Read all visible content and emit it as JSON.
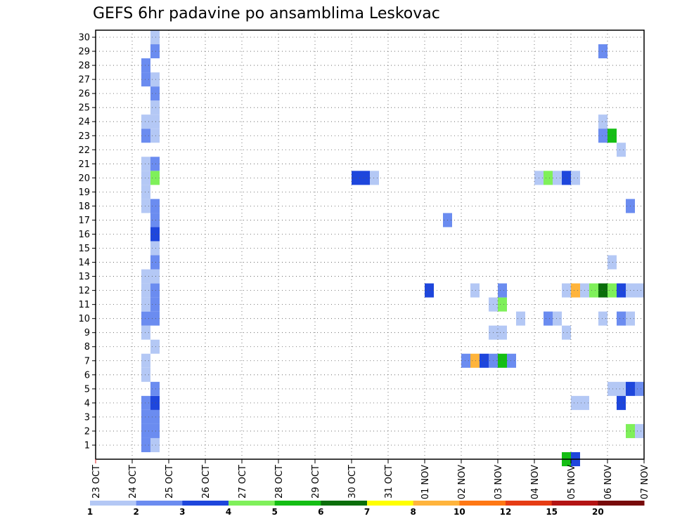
{
  "chart_data": {
    "type": "heatmap",
    "title": "GEFS 6hr padavine po ansamblima Leskovac",
    "xlabel": "",
    "ylabel": "",
    "x_tick_labels": [
      "23 OCT",
      "24 OCT",
      "25 OCT",
      "26 OCT",
      "27 OCT",
      "28 OCT",
      "29 OCT",
      "30 OCT",
      "31 OCT",
      "01 NOV",
      "02 NOV",
      "03 NOV",
      "04 NOV",
      "05 NOV",
      "06 NOV",
      "07 NOV"
    ],
    "y_tick_labels": [
      "1",
      "2",
      "3",
      "4",
      "5",
      "6",
      "7",
      "8",
      "9",
      "10",
      "11",
      "12",
      "13",
      "14",
      "15",
      "16",
      "17",
      "18",
      "19",
      "20",
      "21",
      "22",
      "23",
      "24",
      "25",
      "26",
      "27",
      "28",
      "29",
      "30"
    ],
    "xlim_days": [
      0,
      15
    ],
    "ylim": [
      0,
      30
    ],
    "step_hours": 6,
    "grid": true,
    "colorbar": {
      "labels": [
        "1",
        "2",
        "3",
        "4",
        "5",
        "6",
        "7",
        "8",
        "10",
        "12",
        "15",
        "20"
      ],
      "colors": [
        "#b4c8f5",
        "#6b8cf0",
        "#1e46dc",
        "#7ff05a",
        "#14be14",
        "#0a6e0a",
        "#ffff00",
        "#ffb43c",
        "#ff7814",
        "#e63c14",
        "#b41414",
        "#780a0a"
      ]
    },
    "cells": [
      {
        "t": 1.25,
        "m": 1,
        "v": 2.5
      },
      {
        "t": 1.25,
        "m": 2,
        "v": 2.5
      },
      {
        "t": 1.25,
        "m": 3,
        "v": 2.5
      },
      {
        "t": 1.25,
        "m": 4,
        "v": 2.5
      },
      {
        "t": 1.25,
        "m": 6,
        "v": 1.5
      },
      {
        "t": 1.25,
        "m": 7,
        "v": 1.5
      },
      {
        "t": 1.25,
        "m": 9,
        "v": 1.5
      },
      {
        "t": 1.25,
        "m": 10,
        "v": 2.5
      },
      {
        "t": 1.25,
        "m": 11,
        "v": 1.5
      },
      {
        "t": 1.25,
        "m": 12,
        "v": 1.5
      },
      {
        "t": 1.25,
        "m": 13,
        "v": 1.5
      },
      {
        "t": 1.25,
        "m": 18,
        "v": 1.5
      },
      {
        "t": 1.25,
        "m": 19,
        "v": 1.5
      },
      {
        "t": 1.25,
        "m": 20,
        "v": 1.5
      },
      {
        "t": 1.25,
        "m": 21,
        "v": 1.5
      },
      {
        "t": 1.25,
        "m": 23,
        "v": 2.5
      },
      {
        "t": 1.25,
        "m": 24,
        "v": 1.5
      },
      {
        "t": 1.25,
        "m": 27,
        "v": 2.5
      },
      {
        "t": 1.25,
        "m": 28,
        "v": 2.5
      },
      {
        "t": 1.5,
        "m": 1,
        "v": 1.5
      },
      {
        "t": 1.5,
        "m": 2,
        "v": 2.5
      },
      {
        "t": 1.5,
        "m": 3,
        "v": 2.5
      },
      {
        "t": 1.5,
        "m": 4,
        "v": 3.5
      },
      {
        "t": 1.5,
        "m": 5,
        "v": 2.5
      },
      {
        "t": 1.5,
        "m": 8,
        "v": 1.5
      },
      {
        "t": 1.5,
        "m": 10,
        "v": 2.5
      },
      {
        "t": 1.5,
        "m": 11,
        "v": 2.5
      },
      {
        "t": 1.5,
        "m": 12,
        "v": 2.5
      },
      {
        "t": 1.5,
        "m": 13,
        "v": 1.5
      },
      {
        "t": 1.5,
        "m": 14,
        "v": 2.5
      },
      {
        "t": 1.5,
        "m": 15,
        "v": 1.5
      },
      {
        "t": 1.5,
        "m": 16,
        "v": 3.5
      },
      {
        "t": 1.5,
        "m": 17,
        "v": 2.5
      },
      {
        "t": 1.5,
        "m": 18,
        "v": 2.5
      },
      {
        "t": 1.5,
        "m": 20,
        "v": 4.5
      },
      {
        "t": 1.5,
        "m": 21,
        "v": 2.5
      },
      {
        "t": 1.5,
        "m": 23,
        "v": 1.5
      },
      {
        "t": 1.5,
        "m": 24,
        "v": 1.5
      },
      {
        "t": 1.5,
        "m": 25,
        "v": 1.5
      },
      {
        "t": 1.5,
        "m": 26,
        "v": 2.5
      },
      {
        "t": 1.5,
        "m": 27,
        "v": 1.5
      },
      {
        "t": 1.5,
        "m": 29,
        "v": 2.5
      },
      {
        "t": 1.5,
        "m": 30,
        "v": 1.5
      },
      {
        "t": 7.0,
        "m": 20,
        "v": 3.5
      },
      {
        "t": 7.25,
        "m": 20,
        "v": 3.5
      },
      {
        "t": 7.5,
        "m": 20,
        "v": 1.5
      },
      {
        "t": 9.0,
        "m": 12,
        "v": 3.5
      },
      {
        "t": 9.5,
        "m": 17,
        "v": 2.5
      },
      {
        "t": 10.0,
        "m": 7,
        "v": 2.5
      },
      {
        "t": 10.25,
        "m": 7,
        "v": 9.0
      },
      {
        "t": 10.5,
        "m": 7,
        "v": 3.5
      },
      {
        "t": 10.75,
        "m": 7,
        "v": 2.5
      },
      {
        "t": 11.0,
        "m": 7,
        "v": 5.5
      },
      {
        "t": 11.25,
        "m": 7,
        "v": 2.5
      },
      {
        "t": 10.25,
        "m": 12,
        "v": 1.5
      },
      {
        "t": 10.75,
        "m": 9,
        "v": 1.5
      },
      {
        "t": 11.0,
        "m": 9,
        "v": 1.5
      },
      {
        "t": 10.75,
        "m": 11,
        "v": 1.5
      },
      {
        "t": 11.0,
        "m": 11,
        "v": 4.5
      },
      {
        "t": 11.0,
        "m": 12,
        "v": 2.5
      },
      {
        "t": 11.5,
        "m": 10,
        "v": 1.5
      },
      {
        "t": 12.0,
        "m": 20,
        "v": 1.5
      },
      {
        "t": 12.25,
        "m": 20,
        "v": 4.5
      },
      {
        "t": 12.5,
        "m": 20,
        "v": 1.5
      },
      {
        "t": 12.75,
        "m": 20,
        "v": 3.5
      },
      {
        "t": 13.0,
        "m": 20,
        "v": 1.5
      },
      {
        "t": 12.25,
        "m": 10,
        "v": 2.5
      },
      {
        "t": 12.5,
        "m": 10,
        "v": 1.5
      },
      {
        "t": 12.75,
        "m": 9,
        "v": 1.5
      },
      {
        "t": 12.75,
        "m": 12,
        "v": 1.5
      },
      {
        "t": 13.0,
        "m": 12,
        "v": 9.0
      },
      {
        "t": 13.25,
        "m": 12,
        "v": 1.5
      },
      {
        "t": 13.5,
        "m": 12,
        "v": 4.5
      },
      {
        "t": 13.75,
        "m": 12,
        "v": 6.5
      },
      {
        "t": 14.0,
        "m": 12,
        "v": 4.5
      },
      {
        "t": 14.25,
        "m": 12,
        "v": 3.5
      },
      {
        "t": 14.5,
        "m": 12,
        "v": 1.5
      },
      {
        "t": 14.75,
        "m": 12,
        "v": 1.5
      },
      {
        "t": 13.0,
        "m": 4,
        "v": 1.5
      },
      {
        "t": 13.25,
        "m": 4,
        "v": 1.5
      },
      {
        "t": 12.75,
        "m": 0,
        "v": 5.5
      },
      {
        "t": 13.0,
        "m": 0,
        "v": 3.5
      },
      {
        "t": 13.75,
        "m": 29,
        "v": 2.5
      },
      {
        "t": 13.75,
        "m": 24,
        "v": 1.5
      },
      {
        "t": 13.75,
        "m": 23,
        "v": 2.5
      },
      {
        "t": 14.0,
        "m": 23,
        "v": 5.5
      },
      {
        "t": 14.25,
        "m": 22,
        "v": 1.5
      },
      {
        "t": 14.0,
        "m": 14,
        "v": 1.5
      },
      {
        "t": 13.75,
        "m": 10,
        "v": 1.5
      },
      {
        "t": 14.25,
        "m": 10,
        "v": 2.5
      },
      {
        "t": 14.5,
        "m": 10,
        "v": 1.5
      },
      {
        "t": 14.0,
        "m": 5,
        "v": 1.5
      },
      {
        "t": 14.25,
        "m": 5,
        "v": 1.5
      },
      {
        "t": 14.5,
        "m": 5,
        "v": 3.5
      },
      {
        "t": 14.75,
        "m": 5,
        "v": 2.5
      },
      {
        "t": 14.25,
        "m": 4,
        "v": 3.5
      },
      {
        "t": 14.5,
        "m": 2,
        "v": 4.5
      },
      {
        "t": 14.75,
        "m": 2,
        "v": 1.5
      },
      {
        "t": 14.5,
        "m": 18,
        "v": 2.5
      }
    ]
  }
}
